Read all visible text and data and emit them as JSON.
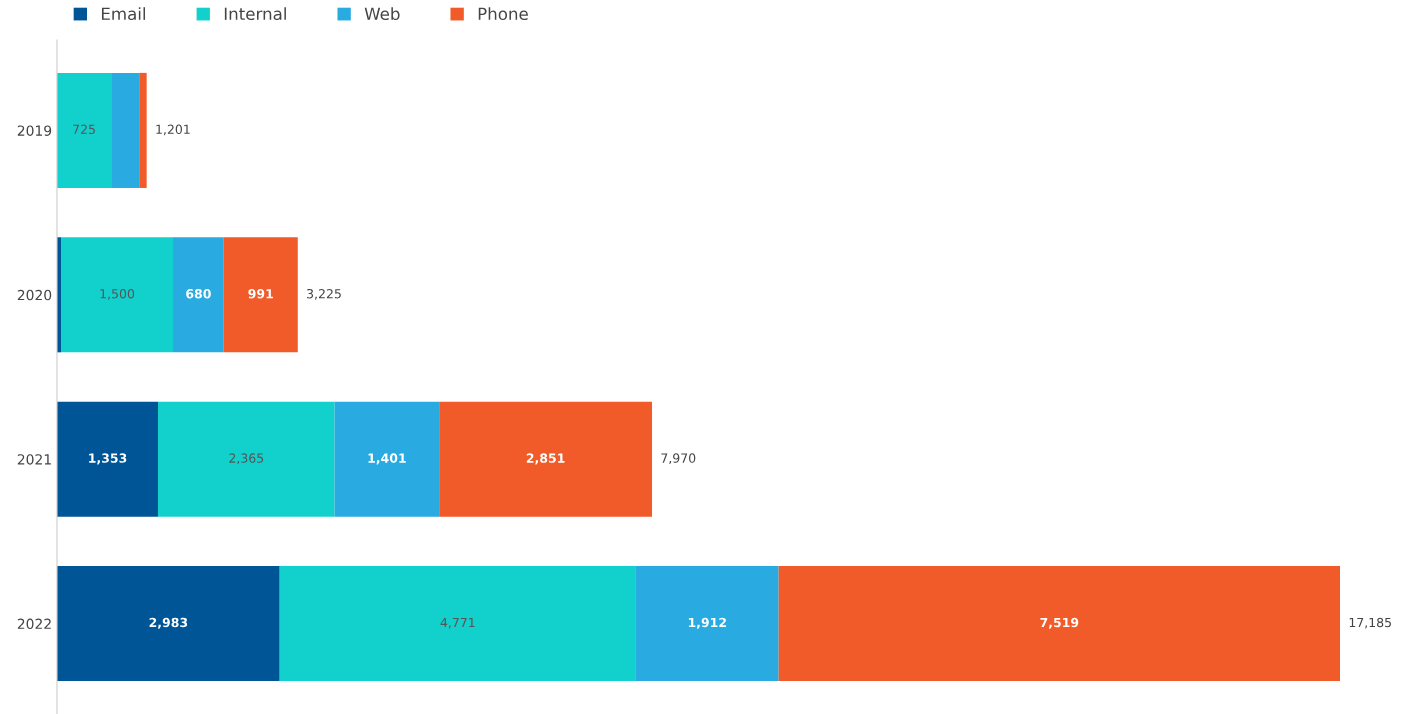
{
  "chart_data": {
    "type": "bar",
    "orientation": "horizontal",
    "stacked": true,
    "categories": [
      "2019",
      "2020",
      "2021",
      "2022"
    ],
    "series": [
      {
        "name": "Email",
        "color": "#005596",
        "values": [
          0,
          54,
          1353,
          2983
        ],
        "value_labels": [
          null,
          null,
          "1,353",
          "2,983"
        ]
      },
      {
        "name": "Internal",
        "color": "#12d0cb",
        "values": [
          725,
          1500,
          2365,
          4771
        ],
        "value_labels": [
          "725",
          "1,500",
          "2,365",
          "4,771"
        ]
      },
      {
        "name": "Web",
        "color": "#29abe2",
        "values": [
          376,
          680,
          1401,
          1912
        ],
        "value_labels": [
          null,
          "680",
          "1,401",
          "1,912"
        ]
      },
      {
        "name": "Phone",
        "color": "#f15a29",
        "values": [
          100,
          991,
          2851,
          7519
        ],
        "value_labels": [
          null,
          "991",
          "2,851",
          "7,519"
        ]
      }
    ],
    "totals": [
      "1,201",
      "3,225",
      "7,970",
      "17,185"
    ],
    "xlim": [
      0,
      17185
    ],
    "tick_labels": "y",
    "grid": false,
    "legend": "top left"
  }
}
